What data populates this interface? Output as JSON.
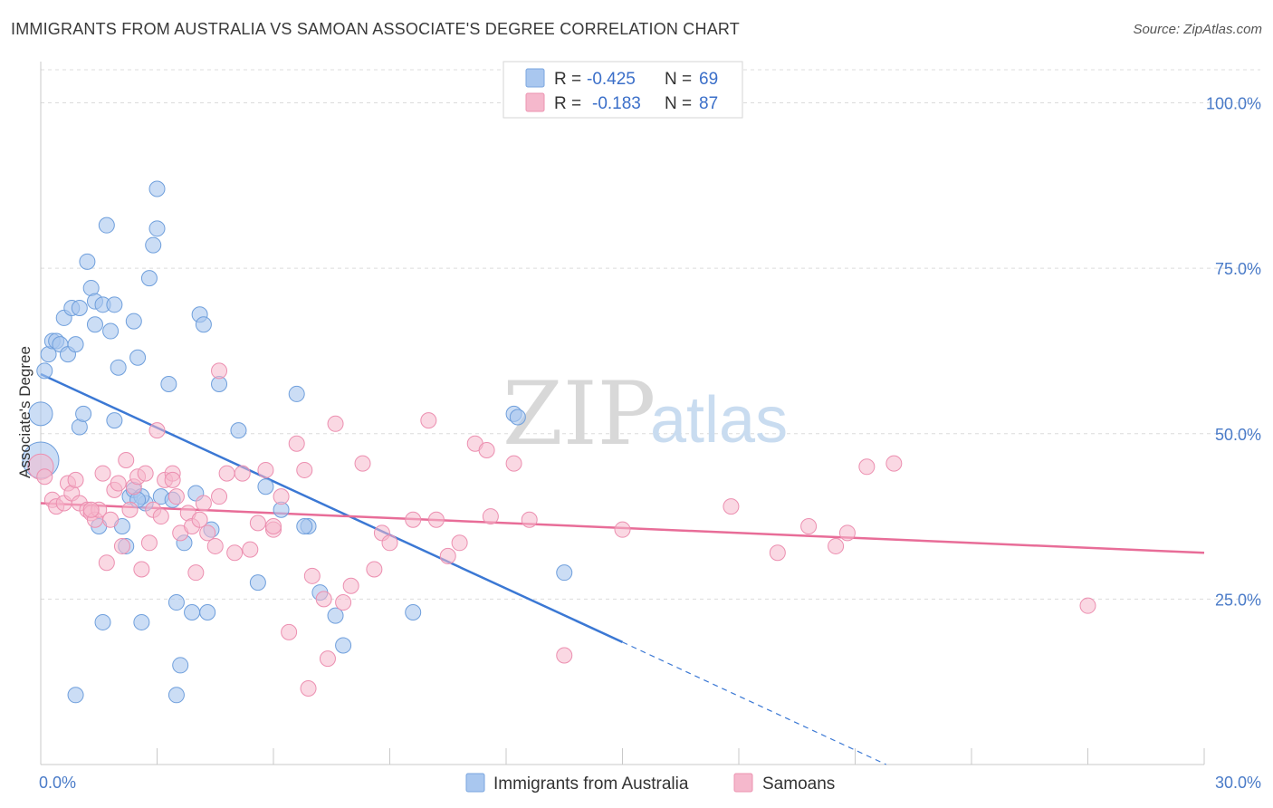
{
  "header": {
    "title": "IMMIGRANTS FROM AUSTRALIA VS SAMOAN ASSOCIATE'S DEGREE CORRELATION CHART",
    "source": "Source: ZipAtlas.com"
  },
  "watermark": {
    "zip": "ZIP",
    "atlas": "atlas"
  },
  "legend_top": {
    "rows": [
      {
        "r_label": "R =",
        "r_value": "-0.425",
        "n_label": "N =",
        "n_value": "69",
        "color": "#a9c7ef"
      },
      {
        "r_label": "R =",
        "r_value": "-0.183",
        "n_label": "N =",
        "n_value": "87",
        "color": "#f5b8cc"
      }
    ]
  },
  "legend_bottom": {
    "items": [
      {
        "label": "Immigrants from Australia",
        "color": "#a9c7ef"
      },
      {
        "label": "Samoans",
        "color": "#f5b8cc"
      }
    ]
  },
  "chart_data": {
    "type": "scatter",
    "title": "IMMIGRANTS FROM AUSTRALIA VS SAMOAN ASSOCIATE'S DEGREE CORRELATION CHART",
    "xlabel": "",
    "ylabel": "Associate's Degree",
    "xlim": [
      0,
      30
    ],
    "ylim": [
      0,
      105
    ],
    "x_tick_labels": [
      "0.0%",
      "30.0%"
    ],
    "y_ticks": [
      25,
      50,
      75,
      100
    ],
    "y_tick_labels": [
      "25.0%",
      "50.0%",
      "75.0%",
      "100.0%"
    ],
    "grid": true,
    "colors": {
      "blue": "#3b78d4",
      "pink": "#e86d98",
      "blue_fill": "#a9c7ef",
      "pink_fill": "#f5b8cc",
      "axis_label": "#4a7bc8"
    },
    "series": [
      {
        "name": "Immigrants from Australia",
        "color": "#3b78d4",
        "points": [
          [
            0.0,
            53.0
          ],
          [
            0.1,
            59.5
          ],
          [
            0.2,
            62.0
          ],
          [
            0.3,
            64.0
          ],
          [
            0.4,
            64.0
          ],
          [
            0.5,
            63.5
          ],
          [
            0.6,
            67.5
          ],
          [
            0.7,
            62.0
          ],
          [
            0.8,
            69.0
          ],
          [
            0.9,
            63.5
          ],
          [
            1.0,
            69.0
          ],
          [
            1.0,
            51.0
          ],
          [
            1.1,
            53.0
          ],
          [
            1.2,
            76.0
          ],
          [
            1.3,
            72.0
          ],
          [
            1.4,
            70.0
          ],
          [
            1.4,
            66.5
          ],
          [
            1.6,
            69.5
          ],
          [
            1.7,
            81.5
          ],
          [
            1.8,
            65.5
          ],
          [
            1.9,
            52.0
          ],
          [
            1.9,
            69.5
          ],
          [
            2.0,
            60.0
          ],
          [
            2.1,
            36.0
          ],
          [
            2.2,
            33.0
          ],
          [
            2.3,
            40.5
          ],
          [
            2.4,
            67.0
          ],
          [
            2.5,
            61.5
          ],
          [
            2.6,
            21.5
          ],
          [
            2.7,
            39.5
          ],
          [
            2.8,
            73.5
          ],
          [
            2.9,
            78.5
          ],
          [
            3.0,
            81.0
          ],
          [
            3.0,
            87.0
          ],
          [
            3.1,
            40.5
          ],
          [
            3.3,
            57.5
          ],
          [
            3.5,
            24.5
          ],
          [
            3.6,
            15.0
          ],
          [
            3.7,
            33.5
          ],
          [
            3.9,
            23.0
          ],
          [
            4.0,
            41.0
          ],
          [
            4.1,
            68.0
          ],
          [
            4.2,
            66.5
          ],
          [
            4.3,
            23.0
          ],
          [
            4.4,
            35.5
          ],
          [
            4.6,
            57.5
          ],
          [
            5.1,
            50.5
          ],
          [
            5.6,
            27.5
          ],
          [
            5.8,
            42.0
          ],
          [
            6.2,
            38.5
          ],
          [
            6.6,
            56.0
          ],
          [
            6.9,
            36.0
          ],
          [
            7.2,
            26.0
          ],
          [
            7.6,
            22.5
          ],
          [
            7.8,
            18.0
          ],
          [
            9.6,
            23.0
          ],
          [
            12.2,
            53.0
          ],
          [
            12.3,
            52.5
          ],
          [
            13.5,
            29.0
          ],
          [
            0.0,
            46.0
          ],
          [
            1.5,
            36.0
          ],
          [
            2.4,
            41.5
          ],
          [
            2.6,
            40.5
          ],
          [
            0.9,
            10.5
          ],
          [
            3.5,
            10.5
          ],
          [
            1.6,
            21.5
          ],
          [
            2.5,
            40.0
          ],
          [
            6.8,
            36.0
          ],
          [
            3.4,
            40.0
          ]
        ]
      },
      {
        "name": "Samoans",
        "color": "#e86d98",
        "points": [
          [
            0.0,
            45.0
          ],
          [
            0.1,
            43.5
          ],
          [
            0.3,
            40.0
          ],
          [
            0.4,
            39.0
          ],
          [
            0.6,
            39.5
          ],
          [
            0.7,
            42.5
          ],
          [
            0.8,
            41.0
          ],
          [
            0.9,
            43.0
          ],
          [
            1.0,
            39.5
          ],
          [
            1.2,
            38.5
          ],
          [
            1.3,
            38.0
          ],
          [
            1.4,
            37.0
          ],
          [
            1.5,
            38.5
          ],
          [
            1.6,
            44.0
          ],
          [
            1.7,
            30.5
          ],
          [
            1.8,
            37.0
          ],
          [
            1.9,
            41.5
          ],
          [
            2.0,
            42.5
          ],
          [
            2.1,
            33.0
          ],
          [
            2.2,
            46.0
          ],
          [
            2.3,
            38.5
          ],
          [
            2.4,
            42.0
          ],
          [
            2.5,
            43.5
          ],
          [
            2.6,
            29.5
          ],
          [
            2.7,
            44.0
          ],
          [
            2.8,
            33.5
          ],
          [
            2.9,
            38.5
          ],
          [
            3.0,
            50.5
          ],
          [
            3.1,
            37.5
          ],
          [
            3.2,
            43.0
          ],
          [
            3.4,
            44.0
          ],
          [
            3.5,
            40.5
          ],
          [
            3.6,
            35.0
          ],
          [
            3.8,
            38.0
          ],
          [
            3.9,
            36.0
          ],
          [
            4.0,
            29.0
          ],
          [
            4.1,
            37.0
          ],
          [
            4.2,
            39.5
          ],
          [
            4.3,
            35.0
          ],
          [
            4.5,
            33.0
          ],
          [
            4.6,
            59.5
          ],
          [
            4.8,
            44.0
          ],
          [
            5.0,
            32.0
          ],
          [
            5.2,
            44.0
          ],
          [
            5.4,
            32.5
          ],
          [
            5.6,
            36.5
          ],
          [
            5.8,
            44.5
          ],
          [
            6.0,
            35.5
          ],
          [
            6.2,
            40.5
          ],
          [
            6.4,
            20.0
          ],
          [
            6.6,
            48.5
          ],
          [
            6.8,
            44.5
          ],
          [
            7.0,
            28.5
          ],
          [
            7.3,
            25.0
          ],
          [
            7.4,
            16.0
          ],
          [
            7.6,
            51.5
          ],
          [
            7.8,
            24.5
          ],
          [
            8.0,
            27.0
          ],
          [
            8.3,
            45.5
          ],
          [
            8.6,
            29.5
          ],
          [
            8.8,
            35.0
          ],
          [
            9.0,
            33.5
          ],
          [
            9.6,
            37.0
          ],
          [
            10.0,
            52.0
          ],
          [
            10.2,
            37.0
          ],
          [
            10.5,
            31.5
          ],
          [
            10.8,
            33.5
          ],
          [
            11.2,
            48.5
          ],
          [
            11.5,
            47.5
          ],
          [
            11.6,
            37.5
          ],
          [
            12.2,
            45.5
          ],
          [
            12.6,
            37.0
          ],
          [
            13.5,
            16.5
          ],
          [
            15.0,
            35.5
          ],
          [
            17.8,
            39.0
          ],
          [
            19.0,
            32.0
          ],
          [
            19.8,
            36.0
          ],
          [
            20.5,
            33.0
          ],
          [
            20.8,
            35.0
          ],
          [
            21.3,
            45.0
          ],
          [
            22.0,
            45.5
          ],
          [
            27.0,
            24.0
          ],
          [
            6.9,
            11.5
          ],
          [
            4.6,
            40.5
          ],
          [
            3.4,
            43.0
          ],
          [
            1.3,
            38.5
          ],
          [
            6.0,
            36.0
          ]
        ]
      }
    ],
    "trendlines": [
      {
        "series": "Immigrants from Australia",
        "x_start": 0.0,
        "y_start": 59.0,
        "x_solid_end": 15.0,
        "y_solid_end": 18.5,
        "x_dashed_end": 21.8,
        "y_dashed_end": 0.0
      },
      {
        "series": "Samoans",
        "x_start": 0.0,
        "y_start": 39.5,
        "x_end": 30.0,
        "y_end": 32.0
      }
    ]
  }
}
